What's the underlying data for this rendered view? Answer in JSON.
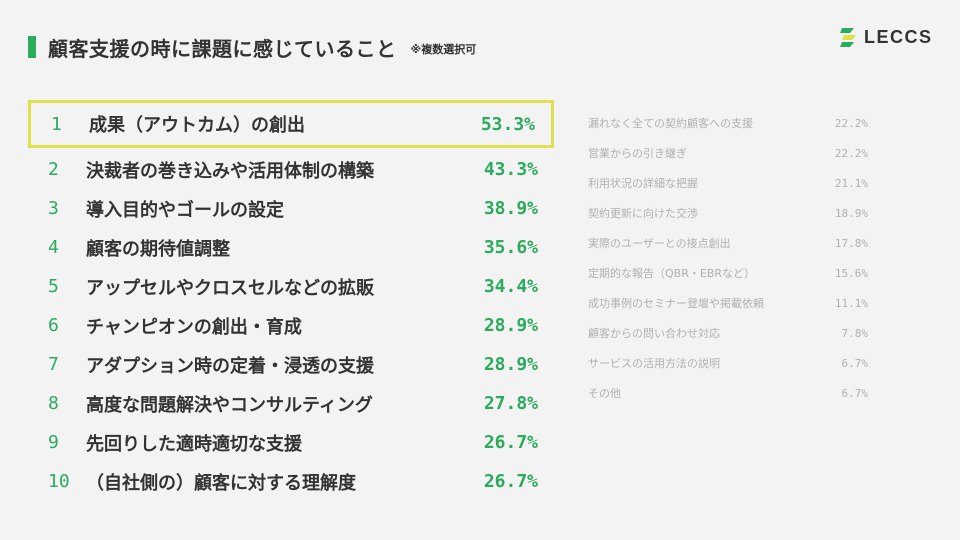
{
  "header": {
    "title": "顧客支援の時に課題に感じていること",
    "note": "※複数選択可",
    "accent_color": "#2bab5c"
  },
  "logo": {
    "text": "LECCS",
    "icon": "leccs-logo-icon"
  },
  "ranking": [
    {
      "rank": "1",
      "label": "成果（アウトカム）の創出",
      "value": "53.3%"
    },
    {
      "rank": "2",
      "label": "決裁者の巻き込みや活用体制の構築",
      "value": "43.3%"
    },
    {
      "rank": "3",
      "label": "導入目的やゴールの設定",
      "value": "38.9%"
    },
    {
      "rank": "4",
      "label": "顧客の期待値調整",
      "value": "35.6%"
    },
    {
      "rank": "5",
      "label": "アップセルやクロスセルなどの拡販",
      "value": "34.4%"
    },
    {
      "rank": "6",
      "label": "チャンピオンの創出・育成",
      "value": "28.9%"
    },
    {
      "rank": "7",
      "label": "アダプション時の定着・浸透の支援",
      "value": "28.9%"
    },
    {
      "rank": "8",
      "label": "高度な問題解決やコンサルティング",
      "value": "27.8%"
    },
    {
      "rank": "9",
      "label": "先回りした適時適切な支援",
      "value": "26.7%"
    },
    {
      "rank": "10",
      "label": "（自社側の）顧客に対する理解度",
      "value": "26.7%"
    }
  ],
  "others": [
    {
      "label": "漏れなく全ての契約顧客への支援",
      "value": "22.2%"
    },
    {
      "label": "営業からの引き継ぎ",
      "value": "22.2%"
    },
    {
      "label": "利用状況の詳細な把握",
      "value": "21.1%"
    },
    {
      "label": "契約更新に向けた交渉",
      "value": "18.9%"
    },
    {
      "label": "実際のユーザーとの接点創出",
      "value": "17.8%"
    },
    {
      "label": "定期的な報告（QBR・EBRなど）",
      "value": "15.6%"
    },
    {
      "label": "成功事例のセミナー登壇や掲載依頼",
      "value": "11.1%"
    },
    {
      "label": "顧客からの問い合わせ対応",
      "value": "7.8%"
    },
    {
      "label": "サービスの活用方法の説明",
      "value": "6.7%"
    },
    {
      "label": "その他",
      "value": "6.7%"
    }
  ]
}
